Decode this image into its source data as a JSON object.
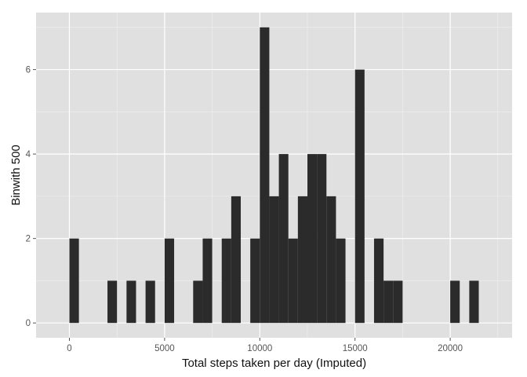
{
  "chart_data": {
    "type": "bar",
    "subtype": "histogram",
    "title": "",
    "xlabel": "Total steps taken per day (Imputed)",
    "ylabel": "Binwith 500",
    "bin_width": 500,
    "xlim": [
      -1750,
      23250
    ],
    "ylim": [
      -0.35,
      7.35
    ],
    "x_ticks": [
      0,
      5000,
      10000,
      15000,
      20000
    ],
    "x_tick_labels": [
      "0",
      "5000",
      "10000",
      "15000",
      "20000"
    ],
    "y_ticks": [
      0,
      2,
      4,
      6
    ],
    "y_tick_labels": [
      "0",
      "2",
      "4",
      "6"
    ],
    "grid": true,
    "bar_color": "#2b2b2b",
    "panel_color": "#e0e0e0",
    "series": [
      {
        "bins": [
          {
            "x_start": 0,
            "x_end": 500,
            "count": 2
          },
          {
            "x_start": 2000,
            "x_end": 2500,
            "count": 1
          },
          {
            "x_start": 3000,
            "x_end": 3500,
            "count": 1
          },
          {
            "x_start": 4000,
            "x_end": 4500,
            "count": 1
          },
          {
            "x_start": 5000,
            "x_end": 5500,
            "count": 2
          },
          {
            "x_start": 6500,
            "x_end": 7000,
            "count": 1
          },
          {
            "x_start": 7000,
            "x_end": 7500,
            "count": 2
          },
          {
            "x_start": 8000,
            "x_end": 8500,
            "count": 2
          },
          {
            "x_start": 8500,
            "x_end": 9000,
            "count": 3
          },
          {
            "x_start": 9500,
            "x_end": 10000,
            "count": 2
          },
          {
            "x_start": 10000,
            "x_end": 10500,
            "count": 7
          },
          {
            "x_start": 10500,
            "x_end": 11000,
            "count": 3
          },
          {
            "x_start": 11000,
            "x_end": 11500,
            "count": 4
          },
          {
            "x_start": 11500,
            "x_end": 12000,
            "count": 2
          },
          {
            "x_start": 12000,
            "x_end": 12500,
            "count": 3
          },
          {
            "x_start": 12500,
            "x_end": 13000,
            "count": 4
          },
          {
            "x_start": 13000,
            "x_end": 13500,
            "count": 4
          },
          {
            "x_start": 13500,
            "x_end": 14000,
            "count": 3
          },
          {
            "x_start": 14000,
            "x_end": 14500,
            "count": 2
          },
          {
            "x_start": 15000,
            "x_end": 15500,
            "count": 6
          },
          {
            "x_start": 16000,
            "x_end": 16500,
            "count": 2
          },
          {
            "x_start": 16500,
            "x_end": 17000,
            "count": 1
          },
          {
            "x_start": 17000,
            "x_end": 17500,
            "count": 1
          },
          {
            "x_start": 20000,
            "x_end": 20500,
            "count": 1
          },
          {
            "x_start": 21000,
            "x_end": 21500,
            "count": 1
          }
        ]
      }
    ]
  }
}
